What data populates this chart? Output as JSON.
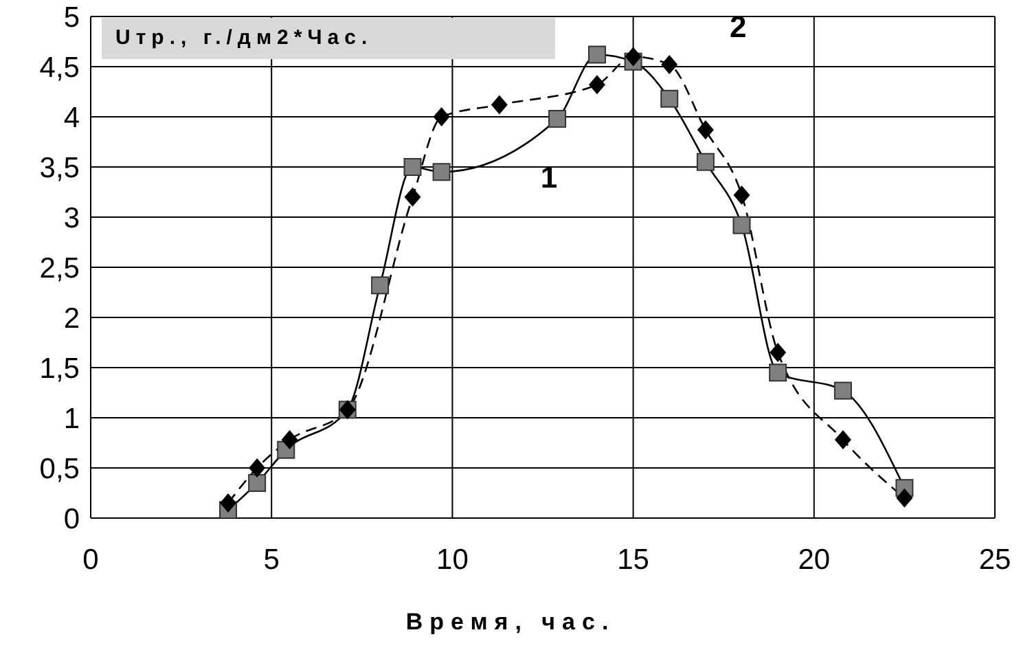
{
  "chart_data": {
    "type": "line",
    "title": "Uтр., г./дм2*Час.",
    "xlabel": "Время, час.",
    "xlim": [
      0,
      25
    ],
    "xticks": [
      0,
      5,
      10,
      15,
      20,
      25
    ],
    "ylim": [
      0,
      5
    ],
    "yticks": [
      0,
      {
        "value": 0.5,
        "label": "0,5"
      },
      1,
      {
        "value": 1.5,
        "label": "1,5"
      },
      2,
      {
        "value": 2.5,
        "label": "2,5"
      },
      3,
      {
        "value": 3.5,
        "label": "3,5"
      },
      4,
      {
        "value": 4.5,
        "label": "4,5"
      },
      5
    ],
    "grid": true,
    "series": [
      {
        "name": "1",
        "color": "#808080",
        "marker": "square",
        "line_style": "solid",
        "x": [
          3.8,
          4.6,
          5.4,
          7.1,
          8.0,
          8.9,
          9.7,
          12.9,
          14.0,
          15.0,
          16.0,
          17.0,
          18.0,
          19.0,
          20.8,
          22.5
        ],
        "values": [
          0.08,
          0.35,
          0.68,
          1.08,
          2.32,
          3.5,
          3.45,
          3.98,
          4.62,
          4.55,
          4.18,
          3.55,
          2.92,
          1.45,
          1.27,
          0.3
        ]
      },
      {
        "name": "2",
        "color": "#000000",
        "marker": "diamond",
        "line_style": "dashed",
        "x": [
          3.8,
          4.6,
          5.5,
          7.1,
          8.9,
          9.7,
          11.3,
          14.0,
          15.0,
          16.0,
          17.0,
          18.0,
          19.0,
          20.8,
          22.5
        ],
        "values": [
          0.15,
          0.5,
          0.78,
          1.08,
          3.2,
          4.0,
          4.12,
          4.32,
          4.6,
          4.52,
          3.87,
          3.22,
          1.65,
          0.78,
          0.2
        ]
      }
    ]
  }
}
